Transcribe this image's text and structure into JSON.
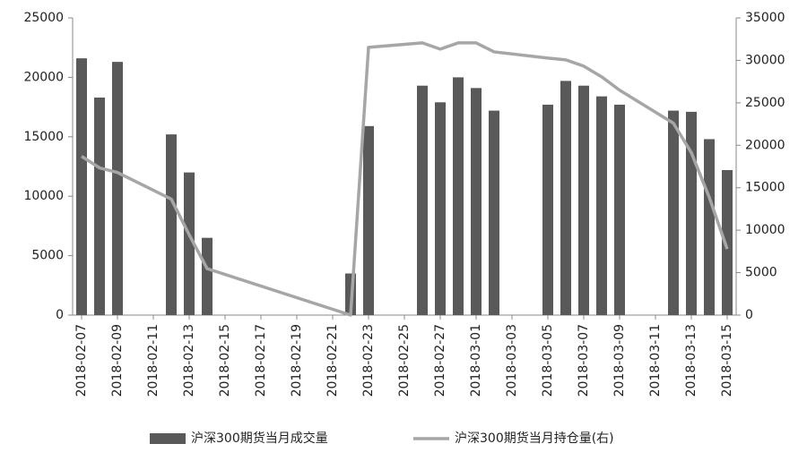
{
  "chart_data": {
    "type": "bar-line",
    "categories": [
      "2018-02-07",
      null,
      "2018-02-09",
      null,
      "2018-02-11",
      null,
      "2018-02-13",
      null,
      "2018-02-15",
      null,
      "2018-02-17",
      null,
      "2018-02-19",
      null,
      "2018-02-21",
      null,
      "2018-02-23",
      null,
      "2018-02-25",
      null,
      "2018-02-27",
      null,
      "2018-03-01",
      null,
      "2018-03-03",
      null,
      "2018-03-05",
      null,
      "2018-03-07",
      null,
      "2018-03-09",
      null,
      "2018-03-11",
      null,
      "2018-03-13",
      null,
      "2018-03-15"
    ],
    "series": [
      {
        "name": "沪深300期货当月成交量",
        "type": "bar",
        "color": "#595959",
        "values": [
          21600,
          18300,
          21300,
          null,
          null,
          15200,
          12000,
          6500,
          null,
          null,
          null,
          null,
          null,
          null,
          null,
          3500,
          15900,
          null,
          null,
          19300,
          17900,
          20000,
          19100,
          17200,
          null,
          null,
          17700,
          19700,
          19300,
          18400,
          17700,
          null,
          null,
          17200,
          17100,
          14800,
          12200
        ]
      },
      {
        "name": "沪深300期货当月持仓量(右)",
        "type": "line",
        "axis": "y2",
        "color": "#a6a6a6",
        "connect_gaps": true,
        "values": [
          18700,
          17340,
          16800,
          null,
          null,
          13660,
          9460,
          5470,
          null,
          null,
          null,
          null,
          null,
          null,
          null,
          0,
          31530,
          null,
          null,
          32060,
          31320,
          32060,
          32060,
          31000,
          null,
          null,
          30270,
          30060,
          29320,
          28060,
          26490,
          null,
          null,
          22600,
          19130,
          13870,
          7780
        ]
      }
    ],
    "ylim": [
      0,
      25000
    ],
    "yticks": [
      0,
      5000,
      10000,
      15000,
      20000,
      25000
    ],
    "y2lim": [
      0,
      35000
    ],
    "y2ticks": [
      0,
      5000,
      10000,
      15000,
      20000,
      25000,
      30000,
      35000
    ],
    "grid": false,
    "legend": "bottom"
  }
}
